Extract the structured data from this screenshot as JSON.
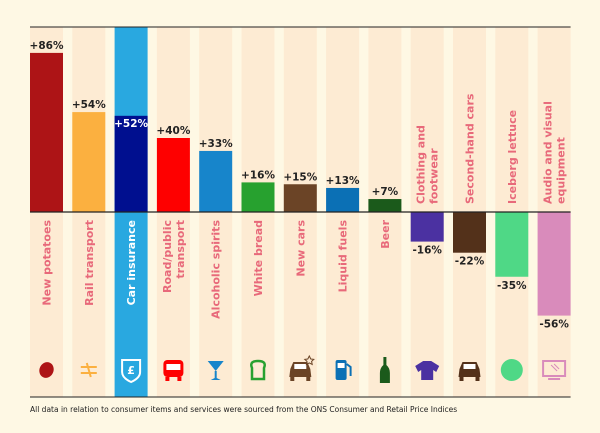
{
  "chart_data": {
    "type": "bar",
    "categories": [
      "New potatoes",
      "Rail transport",
      "Car insurance",
      "Road/public transport",
      "Alcoholic spirits",
      "White bread",
      "New cars",
      "Liquid fuels",
      "Beer",
      "Clothing and footwear",
      "Second-hand cars",
      "Iceberg lettuce",
      "Audio and visual equipment"
    ],
    "label_lines": [
      [
        "New potatoes"
      ],
      [
        "Rail transport"
      ],
      [
        "Car insurance"
      ],
      [
        "Road/public",
        "transport"
      ],
      [
        "Alcoholic spirits"
      ],
      [
        "White bread"
      ],
      [
        "New cars"
      ],
      [
        "Liquid fuels"
      ],
      [
        "Beer"
      ],
      [
        "Clothing and",
        "footwear"
      ],
      [
        "Second-hand cars"
      ],
      [
        "Iceberg lettuce"
      ],
      [
        "Audio and visual",
        "equipment"
      ]
    ],
    "values": [
      86,
      54,
      52,
      40,
      33,
      16,
      15,
      13,
      7,
      -16,
      -22,
      -35,
      -56
    ],
    "value_labels": [
      "+86%",
      "+54%",
      "+52%",
      "+40%",
      "+33%",
      "+16%",
      "+15%",
      "+13%",
      "+7%",
      "-16%",
      "-22%",
      "-35%",
      "-56%"
    ],
    "colors": [
      "#ad1416",
      "#fbb040",
      "#000f8f",
      "#fe0000",
      "#1785cb",
      "#27a12f",
      "#6b4426",
      "#0b70b5",
      "#1b5a1b",
      "#4b31a1",
      "#53311a",
      "#4fd886",
      "#d98bbb"
    ],
    "icons": [
      "potato-icon",
      "train-icon",
      "shield-pound-icon",
      "bus-icon",
      "cocktail-glass-icon",
      "bread-icon",
      "new-car-icon",
      "fuel-pump-icon",
      "bottle-icon",
      "tshirt-icon",
      "car-icon",
      "lettuce-icon",
      "monitor-icon"
    ],
    "highlight_index": 2,
    "highlight_color": "#29a8e0",
    "ylim": [
      -60,
      100
    ],
    "unit": "%",
    "grid": false
  },
  "footnote": "All data in relation to consumer items and services were sourced from the ONS Consumer and Retail Price Indices",
  "colors": {
    "background": "#fef8e4",
    "stripe": "#fdebd3",
    "label": "#e8697a"
  }
}
